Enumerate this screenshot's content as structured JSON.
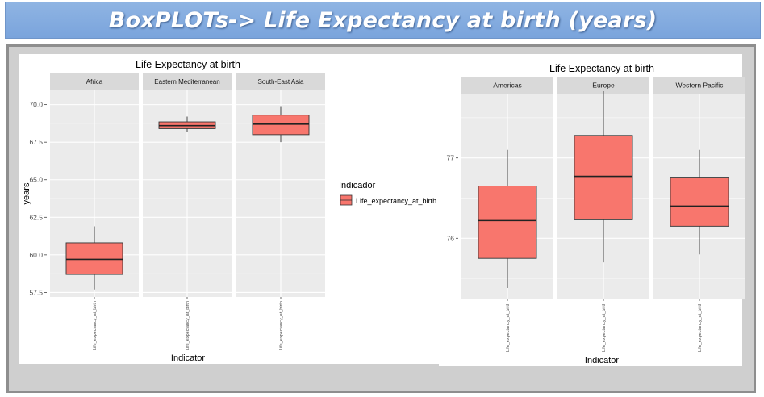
{
  "banner": {
    "title": "BoxPLOTs-> Life Expectancy at birth (years)"
  },
  "chart_data": [
    {
      "type": "boxplot",
      "title": "Life Expectancy at birth",
      "xlabel": "Indicator",
      "ylabel": "years",
      "ylim": [
        57.2,
        71.0
      ],
      "yticks": [
        "57.5",
        "60.0",
        "62.5",
        "65.0",
        "67.5",
        "70.0"
      ],
      "ytick_values": [
        57.5,
        60.0,
        62.5,
        65.0,
        67.5,
        70.0
      ],
      "grid": true,
      "facets": [
        {
          "label": "Africa",
          "x_tick": "Life_expectancy_at_birth",
          "min": 57.7,
          "q1": 58.7,
          "median": 59.7,
          "q3": 60.8,
          "max": 61.9
        },
        {
          "label": "Eastern Mediterranean",
          "x_tick": "Life_expectancy_at_birth",
          "min": 68.2,
          "q1": 68.4,
          "median": 68.6,
          "q3": 68.85,
          "max": 69.2
        },
        {
          "label": "South-East Asia",
          "x_tick": "Life_expectancy_at_birth",
          "min": 67.5,
          "q1": 68.0,
          "median": 68.7,
          "q3": 69.3,
          "max": 69.9
        }
      ]
    },
    {
      "type": "boxplot",
      "title": "Life Expectancy at birth",
      "xlabel": "Indicator",
      "ylabel": "",
      "ylim": [
        75.25,
        77.8
      ],
      "yticks": [
        "76",
        "77"
      ],
      "ytick_values": [
        76,
        77
      ],
      "grid": true,
      "facets": [
        {
          "label": "Americas",
          "x_tick": "Life_expectancy_at_birth",
          "min": 75.38,
          "q1": 75.75,
          "median": 76.22,
          "q3": 76.65,
          "max": 77.1
        },
        {
          "label": "Europe",
          "x_tick": "Life_expectancy_at_birth",
          "min": 75.7,
          "q1": 76.23,
          "median": 76.77,
          "q3": 77.28,
          "max": 77.83
        },
        {
          "label": "Western Pacific",
          "x_tick": "Life_expectancy_at_birth",
          "min": 75.8,
          "q1": 76.15,
          "median": 76.4,
          "q3": 76.76,
          "max": 77.1
        }
      ]
    }
  ],
  "legend": {
    "title": "Indicador",
    "item": "Life_expectancy_at_birth",
    "placement": "right"
  },
  "colors": {
    "box_fill": "#f8766d",
    "panel_bg": "#ebebeb",
    "strip_bg": "#d9d9d9",
    "grid": "#ffffff"
  }
}
